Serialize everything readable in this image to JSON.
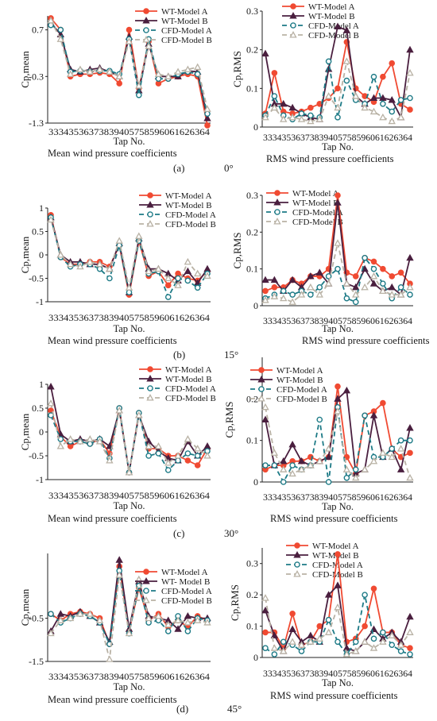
{
  "panel_captions": [
    {
      "letter": "(a)",
      "angle": "0°"
    },
    {
      "letter": "(b)",
      "angle": "15°"
    },
    {
      "letter": "(c)",
      "angle": "30°"
    },
    {
      "letter": "(d)",
      "angle": "45°"
    }
  ],
  "series_styles": [
    {
      "key": "wtA",
      "color": "#f04a32",
      "dash": "",
      "marker": "circle",
      "fill": "#f04a32"
    },
    {
      "key": "wtB",
      "color": "#4a1f3f",
      "dash": "",
      "marker": "triangle",
      "fill": "#4a1f3f"
    },
    {
      "key": "cfdA",
      "color": "#1d7a86",
      "dash": "6,4",
      "marker": "circle",
      "fill": "#ffffff"
    },
    {
      "key": "cfdB",
      "color": "#b9b2a5",
      "dash": "6,4",
      "marker": "triangle",
      "fill": "#ffffff"
    }
  ],
  "chart_data": [
    {
      "type": "line",
      "panel": "a",
      "angle": "0°",
      "ylabel": "Cp,mean",
      "xlabel": "Tap No.",
      "caption": "Mean wind pressure coefficients",
      "tick_label_text": "33343536373839405758596061626364",
      "ylim": [
        -1.3,
        1.0
      ],
      "yticks": [
        0.7,
        -0.3,
        -1.3
      ],
      "ytick_labels": [
        "0.7",
        "-0.3",
        "-1.3"
      ],
      "legend": [
        "WT-Model A",
        "WT-Model B",
        "CFD-Model A",
        "CFD-Model B"
      ],
      "series": [
        {
          "name": "WT-Model A",
          "values": [
            0.95,
            0.7,
            -0.3,
            -0.25,
            -0.25,
            -0.22,
            -0.25,
            -0.45,
            0.7,
            -0.55,
            0.45,
            -0.45,
            -0.35,
            -0.3,
            -0.25,
            -0.3,
            -1.35
          ]
        },
        {
          "name": "WT-Model B",
          "values": [
            0.85,
            0.6,
            -0.15,
            -0.2,
            -0.15,
            -0.12,
            -0.2,
            -0.3,
            0.55,
            -0.6,
            0.4,
            -0.3,
            -0.3,
            -0.3,
            -0.18,
            -0.2,
            -1.2
          ]
        },
        {
          "name": "CFD-Model A",
          "values": [
            0.8,
            0.7,
            -0.2,
            -0.18,
            -0.2,
            -0.18,
            -0.18,
            -0.25,
            0.5,
            -0.7,
            0.5,
            -0.35,
            -0.35,
            -0.25,
            -0.2,
            -0.25,
            -1.1
          ]
        },
        {
          "name": "CFD-Model B",
          "values": [
            0.9,
            0.5,
            -0.25,
            -0.15,
            -0.2,
            -0.15,
            -0.2,
            -0.3,
            0.45,
            -0.5,
            0.35,
            -0.25,
            -0.3,
            -0.2,
            -0.15,
            -0.1,
            -1.0
          ]
        }
      ]
    },
    {
      "type": "line",
      "panel": "a",
      "angle": "0°",
      "ylabel": "Cp,RMS",
      "xlabel": "Tap No.",
      "caption": "RMS wind pressure coefficients",
      "tick_label_text": "33343536373839405758596061626364",
      "ylim": [
        0,
        0.3
      ],
      "yticks": [
        0,
        0.1,
        0.2,
        0.3
      ],
      "ytick_labels": [
        "0",
        "0.1",
        "0.2",
        "0.3"
      ],
      "legend": [
        "WT-Model A",
        "WT-Model B",
        "CFD-Model A",
        "CFD-Model B"
      ],
      "series": [
        {
          "name": "WT-Model A",
          "values": [
            0.035,
            0.14,
            0.04,
            0.035,
            0.04,
            0.05,
            0.06,
            0.075,
            0.1,
            0.22,
            0.1,
            0.08,
            0.065,
            0.13,
            0.165,
            0.06,
            0.045
          ]
        },
        {
          "name": "WT-Model B",
          "values": [
            0.19,
            0.06,
            0.06,
            0.05,
            0.035,
            0.025,
            0.02,
            0.15,
            0.26,
            0.25,
            0.08,
            0.06,
            0.075,
            0.075,
            0.07,
            0.025,
            0.2
          ]
        },
        {
          "name": "CFD-Model A",
          "values": [
            0.03,
            0.08,
            0.03,
            0.02,
            0.035,
            0.03,
            0.025,
            0.17,
            0.025,
            0.12,
            0.07,
            0.06,
            0.13,
            0.06,
            0.04,
            0.07,
            0.075
          ]
        },
        {
          "name": "CFD-Model B",
          "values": [
            0.025,
            0.05,
            0.02,
            0.025,
            0.02,
            0.015,
            0.02,
            0.08,
            0.05,
            0.17,
            0.08,
            0.05,
            0.04,
            0.025,
            0.015,
            0.025,
            0.14
          ]
        }
      ]
    },
    {
      "type": "line",
      "panel": "b",
      "angle": "15°",
      "ylabel": "Cp,mean",
      "xlabel": "Tap No.",
      "caption": "Mean wind pressure coefficients",
      "tick_label_text": "33343536373839405758596061626364",
      "ylim": [
        -1,
        1
      ],
      "yticks": [
        1,
        0.5,
        0,
        -0.5,
        -1
      ],
      "ytick_labels": [
        "1",
        "0.5",
        "0",
        "-0.5",
        "-1"
      ],
      "legend": [
        "WT-Model A",
        "WT-Model B",
        "CFD-Model A",
        "CFD-Model B"
      ],
      "series": [
        {
          "name": "WT-Model A",
          "values": [
            0.85,
            -0.05,
            -0.2,
            -0.2,
            -0.15,
            -0.15,
            -0.25,
            0.2,
            -0.85,
            0.3,
            -0.45,
            -0.35,
            -0.65,
            -0.4,
            -0.5,
            -0.55,
            -0.35
          ]
        },
        {
          "name": "WT-Model B",
          "values": [
            0.8,
            0.0,
            -0.15,
            -0.15,
            -0.2,
            -0.2,
            -0.3,
            0.25,
            -0.8,
            0.35,
            -0.3,
            -0.3,
            -0.4,
            -0.55,
            -0.35,
            -0.6,
            -0.3
          ]
        },
        {
          "name": "CFD-Model A",
          "values": [
            0.8,
            -0.05,
            -0.25,
            -0.2,
            -0.2,
            -0.3,
            -0.5,
            0.2,
            -0.8,
            0.3,
            -0.4,
            -0.35,
            -0.9,
            -0.5,
            -0.55,
            -0.7,
            -0.4
          ]
        },
        {
          "name": "CFD-Model B",
          "values": [
            0.75,
            0.0,
            -0.2,
            -0.25,
            -0.15,
            -0.2,
            -0.3,
            0.3,
            -0.7,
            0.4,
            -0.35,
            -0.3,
            -0.5,
            -0.65,
            -0.15,
            -0.4,
            -0.45
          ]
        }
      ]
    },
    {
      "type": "line",
      "panel": "b",
      "angle": "15°",
      "ylabel": "Cp,RMS",
      "xlabel": "Tap No.",
      "caption": "RMS wind pressure coefficients",
      "tick_label_text": "33343536373839405758596061626364",
      "ylim": [
        0,
        0.3
      ],
      "yticks": [
        0,
        0.1,
        0.2,
        0.3
      ],
      "ytick_labels": [
        "0",
        "0.1",
        "0.2",
        "0.3"
      ],
      "legend": [
        "WT-Model A",
        "WT-Model B",
        "CFD-Model A",
        "CFD-Model B"
      ],
      "series": [
        {
          "name": "WT-Model A",
          "values": [
            0.04,
            0.05,
            0.05,
            0.07,
            0.06,
            0.08,
            0.08,
            0.1,
            0.3,
            0.09,
            0.08,
            0.13,
            0.12,
            0.1,
            0.08,
            0.09,
            0.06
          ]
        },
        {
          "name": "WT-Model B",
          "values": [
            0.07,
            0.07,
            0.04,
            0.07,
            0.05,
            0.08,
            0.09,
            0.06,
            0.28,
            0.06,
            0.05,
            0.1,
            0.06,
            0.04,
            0.05,
            0.03,
            0.13
          ]
        },
        {
          "name": "CFD-Model A",
          "values": [
            0.02,
            0.03,
            0.04,
            0.03,
            0.04,
            0.03,
            0.05,
            0.08,
            0.1,
            0.02,
            0.01,
            0.13,
            0.1,
            0.06,
            0.02,
            0.05,
            0.03
          ]
        },
        {
          "name": "CFD-Model B",
          "values": [
            0.015,
            0.025,
            0.02,
            0.01,
            0.03,
            0.05,
            0.03,
            0.06,
            0.17,
            0.06,
            0.03,
            0.05,
            0.08,
            0.04,
            0.03,
            0.03,
            0.05
          ]
        }
      ]
    },
    {
      "type": "line",
      "panel": "c",
      "angle": "30°",
      "ylabel": "Cp,mean",
      "xlabel": "Tap No.",
      "caption": "Mean wind pressure coefficients",
      "tick_label_text": "33343536373839405758596061626364",
      "ylim": [
        -1,
        1
      ],
      "yticks": [
        1,
        0.5,
        0,
        -0.5,
        -1
      ],
      "ytick_labels": [
        "1",
        "0.5",
        "0",
        "-0.5",
        "-1"
      ],
      "legend": [
        "WT-Model A",
        "WT-Model B",
        "CFD-Model A",
        "CFD-Model B"
      ],
      "series": [
        {
          "name": "WT-Model A",
          "values": [
            0.45,
            -0.1,
            -0.3,
            -0.2,
            -0.25,
            -0.15,
            -0.45,
            0.5,
            -0.85,
            0.4,
            -0.35,
            -0.35,
            -0.5,
            -0.5,
            -0.6,
            -0.7,
            -0.35
          ]
        },
        {
          "name": "WT-Model B",
          "values": [
            0.95,
            -0.05,
            -0.2,
            -0.15,
            -0.2,
            -0.15,
            -0.3,
            0.45,
            -0.85,
            0.35,
            -0.2,
            -0.4,
            -0.55,
            -0.6,
            -0.2,
            -0.5,
            -0.3
          ]
        },
        {
          "name": "CFD-Model A",
          "values": [
            0.35,
            -0.15,
            -0.2,
            -0.2,
            -0.25,
            -0.15,
            -0.55,
            0.5,
            -0.85,
            0.4,
            -0.5,
            -0.45,
            -0.8,
            -0.6,
            -0.45,
            -0.5,
            -0.4
          ]
        },
        {
          "name": "CFD-Model B",
          "values": [
            0.6,
            -0.3,
            -0.15,
            -0.2,
            -0.15,
            -0.2,
            -0.6,
            0.45,
            -0.85,
            0.35,
            -0.3,
            -0.3,
            -0.65,
            -0.5,
            -0.15,
            -0.35,
            -0.5
          ]
        }
      ]
    },
    {
      "type": "line",
      "panel": "c",
      "angle": "30°",
      "ylabel": "Cp,RMS",
      "xlabel": "Tap No.",
      "caption": "RMS wind pressure coefficients",
      "tick_label_text": "33343536373839405758596061626364",
      "ylim": [
        0,
        0.3
      ],
      "yticks": [
        0,
        0.1,
        0.2
      ],
      "ytick_labels": [
        "0",
        "0.1",
        "0.2"
      ],
      "legend": [
        "WT-Model A",
        "WT-Model B",
        "CFD-Model A",
        "CFD-Model B"
      ],
      "series": [
        {
          "name": "WT-Model A",
          "values": [
            0.03,
            0.04,
            0.04,
            0.05,
            0.05,
            0.06,
            0.05,
            0.06,
            0.23,
            0.06,
            0.02,
            0.16,
            0.17,
            0.19,
            0.08,
            0.06,
            0.07
          ]
        },
        {
          "name": "WT-Model B",
          "values": [
            0.15,
            0.04,
            0.05,
            0.09,
            0.05,
            0.04,
            0.05,
            0.06,
            0.2,
            0.22,
            0.02,
            0.03,
            0.16,
            0.06,
            0.08,
            0.03,
            0.13
          ]
        },
        {
          "name": "CFD-Model A",
          "values": [
            0.04,
            0.04,
            0.0,
            0.04,
            0.03,
            0.04,
            0.15,
            0.0,
            0.18,
            0.01,
            0.03,
            0.16,
            0.06,
            0.06,
            0.08,
            0.1,
            0.1
          ]
        },
        {
          "name": "CFD-Model B",
          "values": [
            0.18,
            0.07,
            0.03,
            0.02,
            0.03,
            0.04,
            0.05,
            0.08,
            0.17,
            0.03,
            0.01,
            0.03,
            0.05,
            0.07,
            0.06,
            0.08,
            0.01
          ]
        }
      ]
    },
    {
      "type": "line",
      "panel": "d",
      "angle": "45°",
      "ylabel": "Cp,mean",
      "xlabel": "Tap No.",
      "caption": "Mean wind pressure coefficients",
      "tick_label_text": "33343536373839405758596061626364",
      "ylim": [
        -1.5,
        1.0
      ],
      "yticks": [
        -0.5,
        -1.5
      ],
      "ytick_labels": [
        "-0.5",
        "-1.5"
      ],
      "legend": [
        "WT-Model A",
        "WT- Model B",
        "CFD-Model A",
        "CFD-Model B"
      ],
      "series": [
        {
          "name": "WT-Model A",
          "values": [
            -0.4,
            -0.55,
            -0.4,
            -0.35,
            -0.4,
            -0.5,
            -1.1,
            0.7,
            -0.8,
            0.2,
            -0.55,
            -0.4,
            -0.7,
            -0.55,
            -0.7,
            -0.45,
            -0.55
          ]
        },
        {
          "name": "WT-Model B",
          "values": [
            -0.8,
            -0.4,
            -0.45,
            -0.35,
            -0.45,
            -0.6,
            -1.05,
            0.85,
            -0.75,
            0.35,
            -0.45,
            -0.5,
            -0.55,
            -0.75,
            -0.45,
            -0.5,
            -0.5
          ]
        },
        {
          "name": "CFD-Model A",
          "values": [
            -0.4,
            -0.6,
            -0.5,
            -0.4,
            -0.45,
            -0.6,
            -1.1,
            0.6,
            -0.85,
            0.25,
            -0.6,
            -0.55,
            -0.8,
            -0.45,
            -0.8,
            -0.5,
            -0.55
          ]
        },
        {
          "name": "CFD-Model B",
          "values": [
            -0.85,
            -0.55,
            -0.5,
            -0.4,
            -0.4,
            -0.55,
            -1.45,
            0.5,
            -0.85,
            0.4,
            -0.5,
            -0.45,
            -0.65,
            -0.55,
            -0.6,
            -0.55,
            -0.6
          ]
        }
      ]
    },
    {
      "type": "line",
      "panel": "d",
      "angle": "45°",
      "ylabel": "Cp,RMS",
      "xlabel": "Tap No.",
      "caption": "RMS wind pressure coefficients",
      "tick_label_text": "33343536373839405758596061626364",
      "ylim": [
        0,
        0.35
      ],
      "yticks": [
        0,
        0.1,
        0.2,
        0.3
      ],
      "ytick_labels": [
        "0",
        "0.1",
        "0.2",
        "0.3"
      ],
      "legend": [
        "WT-Model A",
        "WT-Model B",
        "CFD-Model A",
        "CFD-Model B"
      ],
      "series": [
        {
          "name": "WT-Model A",
          "values": [
            0.08,
            0.08,
            0.03,
            0.14,
            0.04,
            0.05,
            0.1,
            0.12,
            0.33,
            0.05,
            0.06,
            0.1,
            0.22,
            0.08,
            0.08,
            0.04,
            0.03
          ]
        },
        {
          "name": "WT-Model B",
          "values": [
            0.15,
            0.07,
            0.02,
            0.09,
            0.05,
            0.07,
            0.05,
            0.2,
            0.23,
            0.03,
            0.02,
            0.05,
            0.09,
            0.06,
            0.08,
            0.05,
            0.13
          ]
        },
        {
          "name": "CFD-Model A",
          "values": [
            0.03,
            0.01,
            0.05,
            0.04,
            0.02,
            0.05,
            0.05,
            0.12,
            0.05,
            0.01,
            0.05,
            0.2,
            0.06,
            0.08,
            0.04,
            0.02,
            0.01
          ]
        },
        {
          "name": "CFD-Model B",
          "values": [
            0.19,
            0.03,
            0.02,
            0.05,
            0.04,
            0.05,
            0.06,
            0.08,
            0.16,
            0.01,
            0.02,
            0.05,
            0.03,
            0.05,
            0.07,
            0.04,
            0.08
          ]
        }
      ]
    }
  ]
}
